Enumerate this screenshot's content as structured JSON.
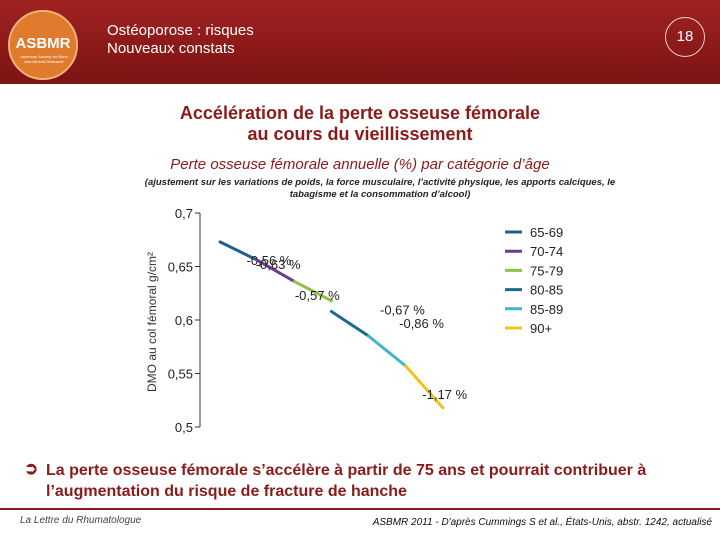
{
  "header": {
    "title_line1": "Ostéoporose : risques",
    "title_line2": "Nouveaux constats",
    "page_number": "18",
    "logo_text": "ASBMR",
    "logo_subtitle": "American Society for Bone and Mineral Research"
  },
  "slide": {
    "title_line1": "Accélération de la perte osseuse fémorale",
    "title_line2": "au cours du vieillissement"
  },
  "conclusion": {
    "bullet_icon": "arrow-right-circle-icon",
    "text": "La perte osseuse fémorale s’accélère à partir de 75 ans et pourrait contribuer à l’augmentation du risque de fracture de hanche"
  },
  "footer": {
    "left": "La Lettre du Rhumatologue",
    "right": "ASBMR 2011 - D'après Cummings S et al., États-Unis, abstr. 1242, actualisé"
  },
  "colors": {
    "brand": "#8b1a1a",
    "logo": "#e07a2c"
  },
  "chart_data": {
    "type": "line",
    "title": "Perte osseuse fémorale annuelle (%) par catégorie d’âge",
    "subtitle": "(ajustement sur les variations de poids, la force musculaire, l’activité physique, les apports calciques, le tabagisme et la consommation d’alcool)",
    "ylabel": "DMO au col fémoral g/cm²",
    "xlabel": "",
    "ylim": [
      0.5,
      0.7
    ],
    "yticks": [
      "0,7",
      "0,65",
      "0,6",
      "0,55",
      "0,5"
    ],
    "ytick_values": [
      0.7,
      0.65,
      0.6,
      0.55,
      0.5
    ],
    "x": [
      0,
      1,
      2,
      3,
      4,
      5,
      6
    ],
    "xlim": [
      0,
      7
    ],
    "legend_position": "right",
    "series": [
      {
        "name": "65-69",
        "color": "#1f5f8b",
        "x": [
          0,
          1
        ],
        "y": [
          0.673,
          0.656
        ],
        "annotation": "-0,56 %"
      },
      {
        "name": "70-74",
        "color": "#6a3d8f",
        "x": [
          1,
          2
        ],
        "y": [
          0.656,
          0.636
        ],
        "annotation": "-0,63 %"
      },
      {
        "name": "75-79",
        "color": "#8fc04a",
        "x": [
          2,
          3
        ],
        "y": [
          0.636,
          0.618
        ],
        "annotation": "-0,57 %"
      },
      {
        "name": "80-85",
        "color": "#1a6b8f",
        "x": [
          3,
          4
        ],
        "y": [
          0.608,
          0.585
        ],
        "annotation": "-0,67 %"
      },
      {
        "name": "85-89",
        "color": "#3fb6c8",
        "x": [
          4,
          5
        ],
        "y": [
          0.585,
          0.557
        ],
        "annotation": "-0,86 %"
      },
      {
        "name": "90+",
        "color": "#f2c21b",
        "x": [
          5,
          6
        ],
        "y": [
          0.557,
          0.518
        ],
        "annotation": "-1,17 %"
      }
    ]
  }
}
